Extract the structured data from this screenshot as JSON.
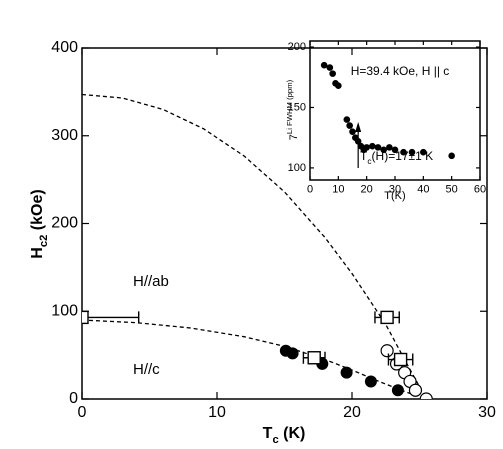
{
  "chart_data": [
    {
      "type": "scatter",
      "xlabel": [
        "T",
        "c",
        " (K)"
      ],
      "ylabel": [
        "H",
        "c2",
        " (kOe)"
      ],
      "xlim": [
        0,
        30
      ],
      "xticks": [
        0,
        10,
        20,
        30
      ],
      "ylim": [
        0,
        400
      ],
      "yticks": [
        0,
        100,
        200,
        300,
        400
      ],
      "annotations": [
        "H//ab",
        "H//c"
      ],
      "series": [
        {
          "marker": "line",
          "style": "dashed",
          "color": "#000000",
          "x": [
            0,
            3,
            6,
            9,
            12,
            15,
            18,
            20,
            22.5,
            24,
            25.5
          ],
          "values": [
            347,
            343,
            330,
            308,
            277,
            236,
            184,
            143,
            85,
            42,
            0
          ]
        },
        {
          "marker": "line",
          "style": "dashed",
          "color": "#000000",
          "x": [
            0,
            4,
            8,
            12,
            15,
            18,
            20,
            22,
            24,
            25.5
          ],
          "values": [
            90,
            87,
            81,
            71,
            60,
            45,
            33,
            20,
            8,
            0
          ]
        },
        {
          "marker": "filled-circle",
          "color": "#000000",
          "x": [
            15.1,
            15.6,
            17.8,
            19.6,
            21.4,
            23.4
          ],
          "values": [
            55,
            52,
            40,
            30,
            20,
            10
          ]
        },
        {
          "marker": "open-circle",
          "color": "#000000",
          "x": [
            22.6,
            23.3,
            23.9,
            24.3,
            24.7,
            25.5
          ],
          "values": [
            55,
            40,
            30,
            20,
            10,
            0
          ]
        },
        {
          "marker": "open-square",
          "color": "#000000",
          "x": [
            0,
            17.2,
            22.6,
            23.6
          ],
          "values": [
            93,
            47,
            93,
            45
          ],
          "xerr": [
            4.2,
            0.8,
            0.9,
            0.9
          ]
        }
      ]
    },
    {
      "type": "scatter",
      "xlabel": [
        "T(K)"
      ],
      "ylabel": [
        "7",
        "Li FWHM (ppm)"
      ],
      "xlim": [
        0,
        60
      ],
      "xticks": [
        0,
        10,
        20,
        30,
        40,
        50,
        60
      ],
      "ylim": [
        90,
        205
      ],
      "yticks": [
        100,
        150,
        200
      ],
      "annotations": [
        "H=39.4 kOe, H || c",
        [
          "T",
          "c",
          "(H)=17±1 K"
        ]
      ],
      "series": [
        {
          "marker": "filled-dot",
          "color": "#000000",
          "x": [
            5,
            7,
            8,
            9,
            10,
            13,
            14,
            15,
            16,
            17,
            18,
            19,
            20,
            22,
            24,
            26,
            28,
            30,
            33,
            36,
            40,
            50
          ],
          "values": [
            185,
            183,
            178,
            170,
            168,
            140,
            135,
            130,
            125,
            122,
            118,
            115,
            117,
            118,
            117,
            115,
            117,
            115,
            113,
            113,
            113,
            110
          ]
        }
      ]
    }
  ]
}
